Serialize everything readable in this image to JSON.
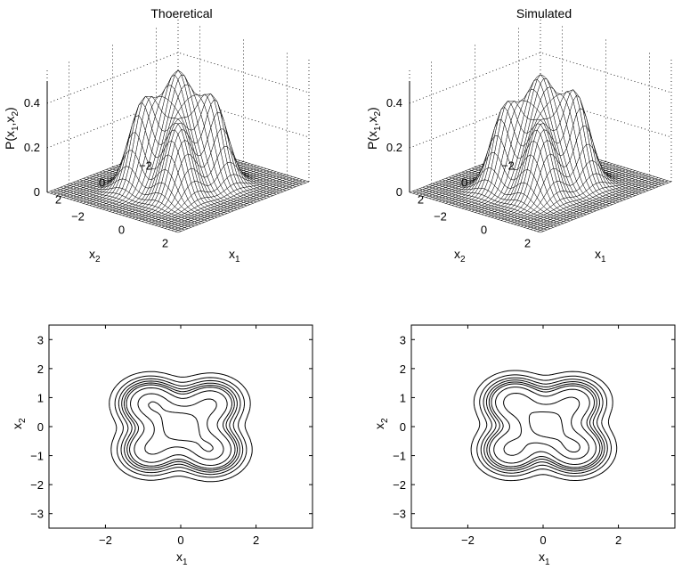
{
  "chart_data": [
    {
      "type": "surface",
      "title": "Thoeretical",
      "xlabel": "x",
      "xlabel_sub": "1",
      "ylabel": "x",
      "ylabel_sub": "2",
      "zlabel": "P(x",
      "zlabel_parts": [
        "P(x",
        "1",
        ",x",
        "2",
        ")"
      ],
      "xlim": [
        -3,
        3
      ],
      "ylim": [
        -3,
        3
      ],
      "zlim": [
        0,
        0.45
      ],
      "x_ticks": [
        "−2",
        "0",
        "2"
      ],
      "y_ticks": [
        "2",
        "0",
        "−2"
      ],
      "z_ticks": [
        "0",
        "0.2",
        "0.4"
      ],
      "grid": true,
      "peaks": [
        {
          "x": 0,
          "y": 0,
          "z": 0.45
        },
        {
          "x": -0.8,
          "y": 0.8,
          "z": 0.38
        },
        {
          "x": 0.8,
          "y": -0.8,
          "z": 0.38
        },
        {
          "x": -0.8,
          "y": -0.8,
          "z": 0.3
        },
        {
          "x": 0.8,
          "y": 0.8,
          "z": 0.3
        }
      ]
    },
    {
      "type": "surface",
      "title": "Simulated",
      "xlabel": "x",
      "xlabel_sub": "1",
      "ylabel": "x",
      "ylabel_sub": "2",
      "zlabel": "P(x",
      "zlabel_parts": [
        "P(x",
        "1",
        ",x",
        "2",
        ")"
      ],
      "xlim": [
        -3,
        3
      ],
      "ylim": [
        -3,
        3
      ],
      "zlim": [
        0,
        0.45
      ],
      "x_ticks": [
        "−2",
        "0",
        "2"
      ],
      "y_ticks": [
        "2",
        "0",
        "−2"
      ],
      "z_ticks": [
        "0",
        "0.2",
        "0.4"
      ],
      "grid": true,
      "peaks": [
        {
          "x": 0,
          "y": 0,
          "z": 0.43
        },
        {
          "x": -0.8,
          "y": 0.8,
          "z": 0.36
        },
        {
          "x": 0.8,
          "y": -0.8,
          "z": 0.4
        },
        {
          "x": -0.8,
          "y": -0.8,
          "z": 0.32
        },
        {
          "x": 0.8,
          "y": 0.8,
          "z": 0.3
        }
      ]
    },
    {
      "type": "contour",
      "xlabel": "x",
      "xlabel_sub": "1",
      "ylabel": "x",
      "ylabel_sub": "2",
      "xlim": [
        -3.5,
        3.5
      ],
      "ylim": [
        -3.5,
        3.5
      ],
      "x_ticks": [
        {
          "v": -2,
          "t": "−2"
        },
        {
          "v": 0,
          "t": "0"
        },
        {
          "v": 2,
          "t": "2"
        }
      ],
      "y_ticks": [
        {
          "v": 3,
          "t": "3"
        },
        {
          "v": 2,
          "t": "2"
        },
        {
          "v": 1,
          "t": "1"
        },
        {
          "v": 0,
          "t": "0"
        },
        {
          "v": -1,
          "t": "−1"
        },
        {
          "v": -2,
          "t": "−2"
        },
        {
          "v": -3,
          "t": "−3"
        }
      ],
      "levels": [
        0.025,
        0.05,
        0.075,
        0.1,
        0.125,
        0.15,
        0.2,
        0.3,
        0.4
      ],
      "peaks": [
        {
          "x": 0,
          "y": 0,
          "z": 0.45
        },
        {
          "x": -0.8,
          "y": 0.8,
          "z": 0.38
        },
        {
          "x": 0.8,
          "y": -0.8,
          "z": 0.38
        },
        {
          "x": -0.8,
          "y": -0.8,
          "z": 0.3
        },
        {
          "x": 0.8,
          "y": 0.8,
          "z": 0.3
        }
      ]
    },
    {
      "type": "contour",
      "xlabel": "x",
      "xlabel_sub": "1",
      "ylabel": "x",
      "ylabel_sub": "2",
      "xlim": [
        -3.5,
        3.5
      ],
      "ylim": [
        -3.5,
        3.5
      ],
      "x_ticks": [
        {
          "v": -2,
          "t": "−2"
        },
        {
          "v": 0,
          "t": "0"
        },
        {
          "v": 2,
          "t": "2"
        }
      ],
      "y_ticks": [
        {
          "v": 3,
          "t": "3"
        },
        {
          "v": 2,
          "t": "2"
        },
        {
          "v": 1,
          "t": "1"
        },
        {
          "v": 0,
          "t": "0"
        },
        {
          "v": -1,
          "t": "−1"
        },
        {
          "v": -2,
          "t": "−2"
        },
        {
          "v": -3,
          "t": "−3"
        }
      ],
      "levels": [
        0.025,
        0.05,
        0.075,
        0.1,
        0.125,
        0.15,
        0.2,
        0.3,
        0.4
      ],
      "peaks": [
        {
          "x": 0.05,
          "y": 0.05,
          "z": 0.43
        },
        {
          "x": -0.75,
          "y": 0.85,
          "z": 0.36
        },
        {
          "x": 0.85,
          "y": -0.75,
          "z": 0.4
        },
        {
          "x": -0.85,
          "y": -0.8,
          "z": 0.32
        },
        {
          "x": 0.8,
          "y": 0.85,
          "z": 0.3
        }
      ]
    }
  ]
}
